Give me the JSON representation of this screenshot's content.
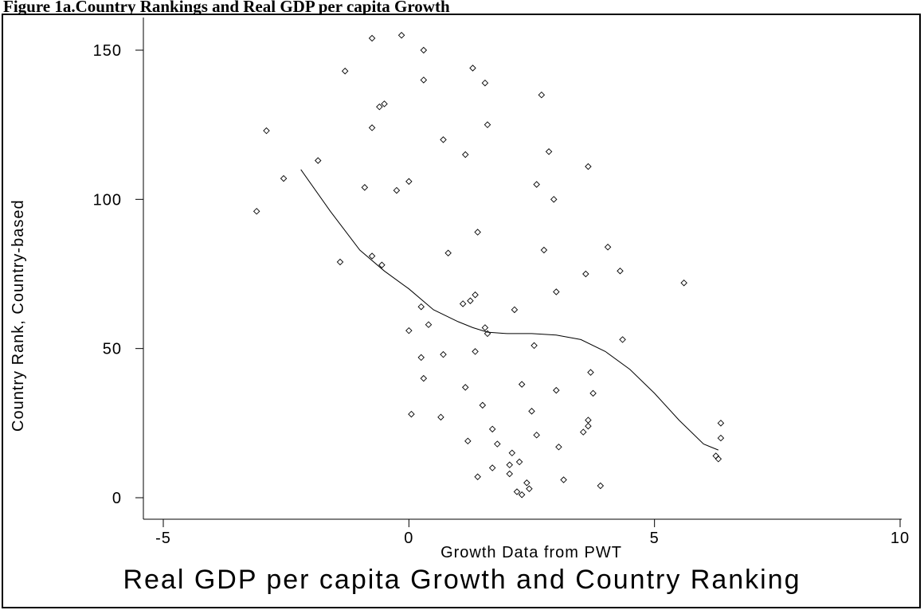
{
  "page_heading": "Figure 1a.Country Rankings and Real GDP per capita Growth",
  "chart_data": {
    "type": "scatter",
    "title": "Real GDP per capita Growth and Country Ranking",
    "xlabel": "Growth Data from PWT",
    "ylabel": "Country Rank, Country-based",
    "xlim": [
      -5,
      10
    ],
    "ylim": [
      0,
      155
    ],
    "xticks": [
      -5,
      0,
      5,
      10
    ],
    "yticks": [
      0,
      50,
      100,
      150
    ],
    "grid": false,
    "marker": "diamond-open",
    "color": "#000000",
    "series": [
      {
        "kind": "points",
        "points": [
          [
            -3.1,
            96
          ],
          [
            -2.9,
            123
          ],
          [
            -2.55,
            107
          ],
          [
            -1.85,
            113
          ],
          [
            -1.4,
            79
          ],
          [
            -1.3,
            143
          ],
          [
            -0.9,
            104
          ],
          [
            -0.75,
            154
          ],
          [
            -0.75,
            81
          ],
          [
            -0.75,
            124
          ],
          [
            -0.6,
            131
          ],
          [
            -0.55,
            78
          ],
          [
            -0.5,
            132
          ],
          [
            -0.25,
            103
          ],
          [
            -0.15,
            155
          ],
          [
            0.0,
            106
          ],
          [
            0.0,
            56
          ],
          [
            0.05,
            28
          ],
          [
            0.25,
            47
          ],
          [
            0.25,
            64
          ],
          [
            0.3,
            140
          ],
          [
            0.3,
            150
          ],
          [
            0.3,
            40
          ],
          [
            0.4,
            58
          ],
          [
            0.65,
            27
          ],
          [
            0.7,
            48
          ],
          [
            0.7,
            120
          ],
          [
            0.8,
            82
          ],
          [
            1.1,
            65
          ],
          [
            1.15,
            37
          ],
          [
            1.15,
            115
          ],
          [
            1.2,
            19
          ],
          [
            1.25,
            66
          ],
          [
            1.3,
            144
          ],
          [
            1.35,
            68
          ],
          [
            1.35,
            49
          ],
          [
            1.4,
            89
          ],
          [
            1.4,
            7
          ],
          [
            1.5,
            31
          ],
          [
            1.55,
            57
          ],
          [
            1.55,
            139
          ],
          [
            1.6,
            125
          ],
          [
            1.6,
            55
          ],
          [
            1.7,
            10
          ],
          [
            1.7,
            23
          ],
          [
            1.8,
            18
          ],
          [
            2.05,
            8
          ],
          [
            2.05,
            11
          ],
          [
            2.1,
            15
          ],
          [
            2.15,
            63
          ],
          [
            2.2,
            2
          ],
          [
            2.25,
            12
          ],
          [
            2.3,
            38
          ],
          [
            2.3,
            1
          ],
          [
            2.4,
            5
          ],
          [
            2.45,
            3
          ],
          [
            2.5,
            29
          ],
          [
            2.55,
            51
          ],
          [
            2.6,
            21
          ],
          [
            2.6,
            105
          ],
          [
            2.7,
            135
          ],
          [
            2.75,
            83
          ],
          [
            2.85,
            116
          ],
          [
            2.95,
            100
          ],
          [
            3.0,
            69
          ],
          [
            3.0,
            36
          ],
          [
            3.05,
            17
          ],
          [
            3.15,
            6
          ],
          [
            3.55,
            22
          ],
          [
            3.6,
            75
          ],
          [
            3.65,
            111
          ],
          [
            3.65,
            24
          ],
          [
            3.65,
            26
          ],
          [
            3.7,
            42
          ],
          [
            3.75,
            35
          ],
          [
            3.9,
            4
          ],
          [
            4.05,
            84
          ],
          [
            4.3,
            76
          ],
          [
            4.35,
            53
          ],
          [
            5.6,
            72
          ],
          [
            6.25,
            14
          ],
          [
            6.3,
            13
          ],
          [
            6.35,
            25
          ],
          [
            6.35,
            20
          ]
        ]
      },
      {
        "kind": "line",
        "points": [
          [
            -2.2,
            110
          ],
          [
            -1.6,
            96
          ],
          [
            -1.0,
            83
          ],
          [
            -0.5,
            76
          ],
          [
            0.0,
            70
          ],
          [
            0.5,
            63
          ],
          [
            1.0,
            59
          ],
          [
            1.3,
            57
          ],
          [
            1.6,
            55.5
          ],
          [
            2.0,
            55
          ],
          [
            2.5,
            55
          ],
          [
            3.0,
            54.5
          ],
          [
            3.5,
            53
          ],
          [
            4.0,
            49
          ],
          [
            4.5,
            43
          ],
          [
            5.0,
            35
          ],
          [
            5.5,
            26
          ],
          [
            6.0,
            18
          ],
          [
            6.3,
            16
          ]
        ]
      }
    ]
  }
}
